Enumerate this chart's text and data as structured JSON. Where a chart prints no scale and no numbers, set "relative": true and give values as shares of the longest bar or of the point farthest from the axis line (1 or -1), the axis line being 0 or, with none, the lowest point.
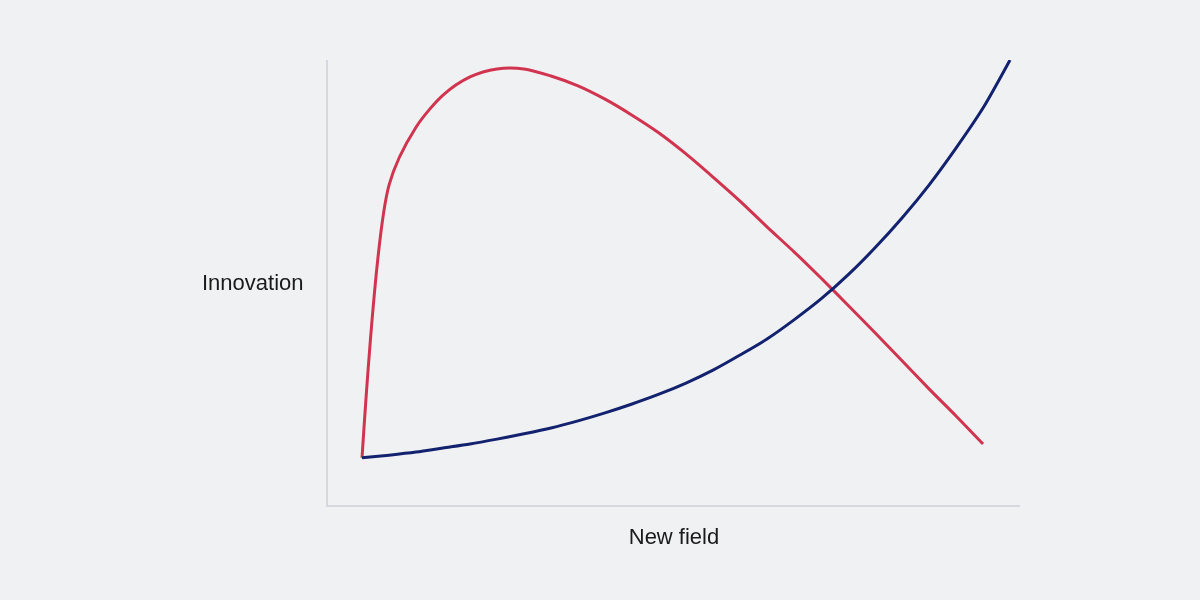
{
  "chart_data": {
    "type": "line",
    "relative": true,
    "xlabel": "New field",
    "ylabel": "Innovation",
    "marker": "none",
    "line_style": "solid",
    "categories": [
      null,
      null,
      null,
      null,
      null,
      null,
      null,
      null,
      null,
      null,
      null,
      null,
      null,
      null,
      null,
      null,
      null,
      null,
      null,
      null,
      null,
      null,
      null,
      null,
      null
    ],
    "series": [
      {
        "color": "#d1344f",
        "values": [
          0.106,
          0.719,
          0.849,
          0.921,
          0.962,
          0.98,
          0.98,
          0.964,
          0.942,
          0.912,
          0.876,
          0.836,
          0.789,
          0.737,
          0.683,
          0.625,
          0.569,
          0.51,
          0.449,
          0.387,
          0.324,
          0.261,
          0.2,
          0.137,
          null
        ]
      },
      {
        "color": "#13226f",
        "values": [
          0.106,
          0.112,
          0.119,
          0.128,
          0.137,
          0.148,
          0.16,
          0.173,
          0.189,
          0.207,
          0.227,
          0.249,
          0.274,
          0.303,
          0.337,
          0.373,
          0.416,
          0.463,
          0.517,
          0.578,
          0.645,
          0.719,
          0.802,
          0.892,
          1
        ]
      }
    ]
  }
}
